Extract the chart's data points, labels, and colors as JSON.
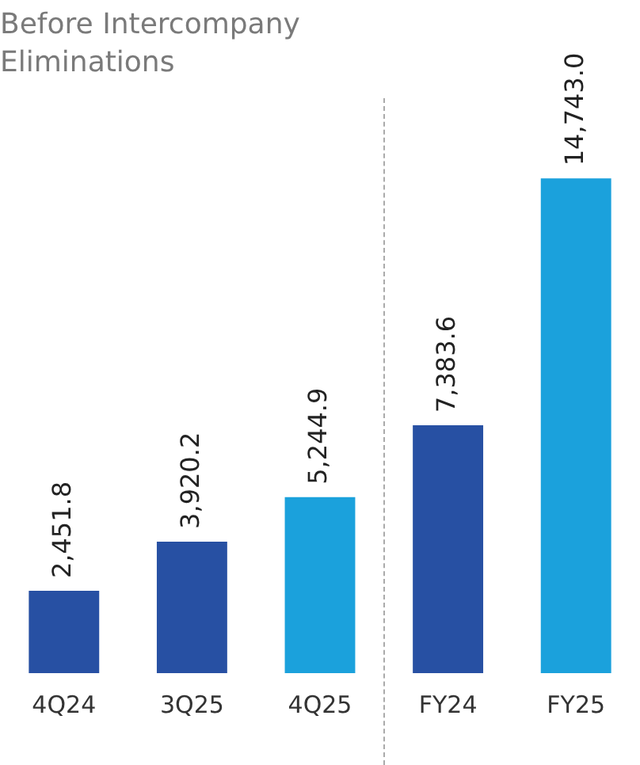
{
  "chart_data": {
    "type": "bar",
    "subtitle": "Before Intercompany Eliminations",
    "categories": [
      "4Q24",
      "3Q25",
      "4Q25",
      "FY24",
      "FY25"
    ],
    "values": [
      2451.8,
      3920.2,
      5244.9,
      7383.6,
      14743.0
    ],
    "colors": [
      "#2750a3",
      "#2750a3",
      "#1ba1dc",
      "#2750a3",
      "#1ba1dc"
    ],
    "value_labels": [
      "2,451.8",
      "3,920.2",
      "5,244.9",
      "7,383.6",
      "14,743.0"
    ],
    "relative": false,
    "grid": false,
    "legend": false
  }
}
